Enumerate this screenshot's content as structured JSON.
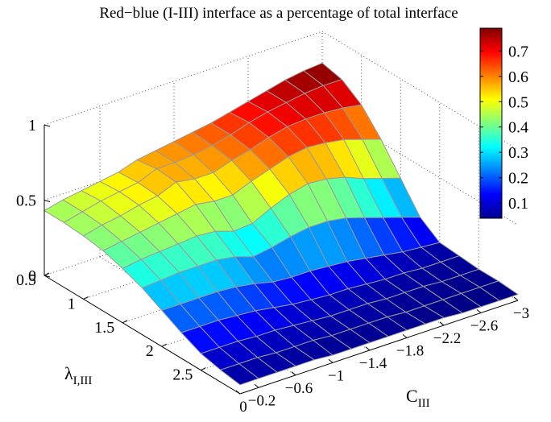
{
  "chart_data": {
    "type": "surface",
    "title": "Red−blue (I-III) interface as a percentage of total interface",
    "ylabel": "λ",
    "ylabel_sub": "I,III",
    "xlabel": "C",
    "xlabel_sub": "III",
    "zlim": [
      0,
      1
    ],
    "z_ticks": [
      "0",
      "0.5",
      "1"
    ],
    "lambda_ticks": [
      "0.5",
      "1",
      "1.5",
      "2",
      "2.5"
    ],
    "c_ticks": [
      "0",
      "−0.2",
      "−0.6",
      "−1",
      "−1.4",
      "−1.8",
      "−2.2",
      "−2.6",
      "−3"
    ],
    "lambda_range": [
      0.5,
      3.0
    ],
    "c_range": [
      0,
      -3
    ],
    "colorbar": {
      "ticks": [
        "0.1",
        "0.2",
        "0.3",
        "0.4",
        "0.5",
        "0.6",
        "0.7"
      ],
      "range": [
        0.04,
        0.79
      ],
      "colormap": "jet"
    },
    "grid": true,
    "edge_color": "#9a9a9a",
    "lambda_values": [
      0.5,
      0.75,
      1.0,
      1.25,
      1.5,
      1.75,
      2.0,
      2.25,
      2.5,
      2.75,
      3.0
    ],
    "c_values": [
      0,
      -0.2,
      -0.4,
      -0.6,
      -0.8,
      -1.0,
      -1.2,
      -1.4,
      -1.6,
      -1.8,
      -2.0,
      -2.2,
      -2.4,
      -2.6,
      -2.8,
      -3.0
    ],
    "z": [
      [
        0.43,
        0.46,
        0.48,
        0.5,
        0.52,
        0.56,
        0.58,
        0.6,
        0.62,
        0.64,
        0.67,
        0.7,
        0.73,
        0.76,
        0.78,
        0.79
      ],
      [
        0.43,
        0.46,
        0.49,
        0.51,
        0.53,
        0.58,
        0.58,
        0.59,
        0.61,
        0.64,
        0.68,
        0.71,
        0.73,
        0.75,
        0.76,
        0.76
      ],
      [
        0.42,
        0.45,
        0.47,
        0.5,
        0.52,
        0.57,
        0.55,
        0.55,
        0.59,
        0.62,
        0.66,
        0.69,
        0.7,
        0.7,
        0.69,
        0.67
      ],
      [
        0.4,
        0.42,
        0.44,
        0.46,
        0.48,
        0.5,
        0.48,
        0.48,
        0.53,
        0.57,
        0.61,
        0.63,
        0.62,
        0.6,
        0.56,
        0.52
      ],
      [
        0.36,
        0.38,
        0.39,
        0.4,
        0.41,
        0.4,
        0.36,
        0.37,
        0.43,
        0.48,
        0.51,
        0.5,
        0.47,
        0.42,
        0.38,
        0.34
      ],
      [
        0.31,
        0.32,
        0.33,
        0.33,
        0.33,
        0.31,
        0.27,
        0.29,
        0.32,
        0.34,
        0.34,
        0.32,
        0.28,
        0.24,
        0.2,
        0.16
      ],
      [
        0.24,
        0.24,
        0.24,
        0.24,
        0.23,
        0.21,
        0.18,
        0.17,
        0.17,
        0.16,
        0.15,
        0.13,
        0.11,
        0.09,
        0.08,
        0.07
      ],
      [
        0.17,
        0.17,
        0.17,
        0.16,
        0.15,
        0.13,
        0.11,
        0.1,
        0.09,
        0.09,
        0.08,
        0.07,
        0.07,
        0.06,
        0.06,
        0.06
      ],
      [
        0.11,
        0.11,
        0.11,
        0.1,
        0.1,
        0.09,
        0.08,
        0.07,
        0.07,
        0.07,
        0.06,
        0.06,
        0.06,
        0.05,
        0.05,
        0.05
      ],
      [
        0.08,
        0.08,
        0.08,
        0.07,
        0.07,
        0.07,
        0.06,
        0.06,
        0.06,
        0.06,
        0.05,
        0.05,
        0.05,
        0.05,
        0.05,
        0.05
      ],
      [
        0.06,
        0.06,
        0.06,
        0.06,
        0.06,
        0.05,
        0.05,
        0.05,
        0.05,
        0.05,
        0.05,
        0.05,
        0.04,
        0.04,
        0.04,
        0.04
      ]
    ]
  }
}
